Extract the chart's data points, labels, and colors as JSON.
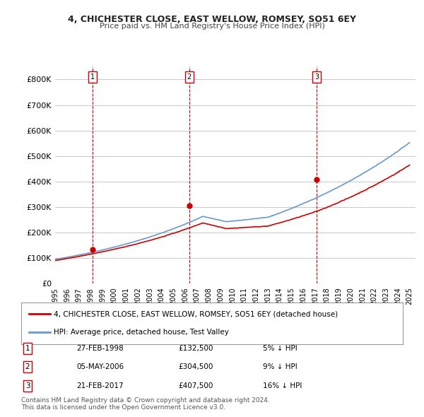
{
  "title": "4, CHICHESTER CLOSE, EAST WELLOW, ROMSEY, SO51 6EY",
  "subtitle": "Price paid vs. HM Land Registry's House Price Index (HPI)",
  "ylabel": "",
  "background_color": "#ffffff",
  "grid_color": "#cccccc",
  "sale_color": "#cc0000",
  "hpi_color": "#6699cc",
  "sale_label": "4, CHICHESTER CLOSE, EAST WELLOW, ROMSEY, SO51 6EY (detached house)",
  "hpi_label": "HPI: Average price, detached house, Test Valley",
  "transactions": [
    {
      "num": "1",
      "date": "27-FEB-1998",
      "price": "£132,500",
      "pct": "5% ↓ HPI",
      "year": 1998.15
    },
    {
      "num": "2",
      "date": "05-MAY-2006",
      "price": "£304,500",
      "pct": "9% ↓ HPI",
      "year": 2006.35
    },
    {
      "num": "3",
      "date": "21-FEB-2017",
      "price": "£407,500",
      "pct": "16% ↓ HPI",
      "year": 2017.15
    }
  ],
  "transaction_prices": [
    132500,
    304500,
    407500
  ],
  "footer": "Contains HM Land Registry data © Crown copyright and database right 2024.\nThis data is licensed under the Open Government Licence v3.0.",
  "ylim": [
    0,
    850000
  ],
  "xlim_start": 1995.0,
  "xlim_end": 2025.5,
  "yticks": [
    0,
    100000,
    200000,
    300000,
    400000,
    500000,
    600000,
    700000,
    800000
  ],
  "ytick_labels": [
    "£0",
    "£100K",
    "£200K",
    "£300K",
    "£400K",
    "£500K",
    "£600K",
    "£700K",
    "£800K"
  ],
  "xticks": [
    1995,
    1996,
    1997,
    1998,
    1999,
    2000,
    2001,
    2002,
    2003,
    2004,
    2005,
    2006,
    2007,
    2008,
    2009,
    2010,
    2011,
    2012,
    2013,
    2014,
    2015,
    2016,
    2017,
    2018,
    2019,
    2020,
    2021,
    2022,
    2023,
    2024,
    2025
  ]
}
